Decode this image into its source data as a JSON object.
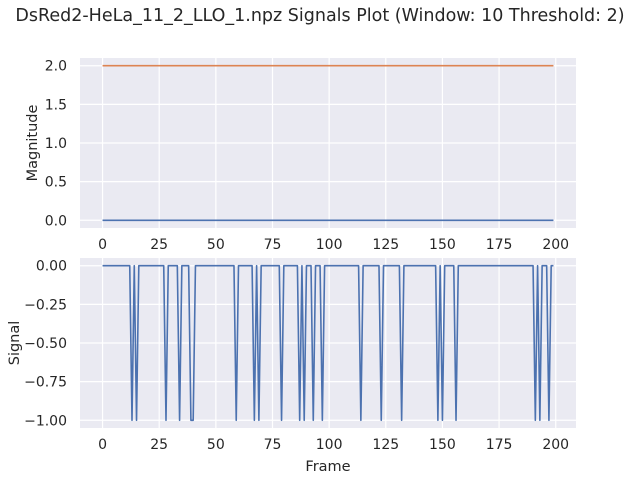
{
  "title": "DsRed2-HeLa_11_2_LLO_1.npz Signals Plot (Window: 10 Threshold: 2)",
  "colors": {
    "background": "#eaeaf2",
    "grid": "#ffffff",
    "series_blue": "#4c72b0",
    "series_orange": "#dd8452",
    "text": "#262626"
  },
  "chart_data": [
    {
      "type": "line",
      "title": "",
      "xlabel": "",
      "ylabel": "Magnitude",
      "xlim": [
        -9.95,
        208.95
      ],
      "ylim": [
        -0.1,
        2.1
      ],
      "xticks": [
        0,
        25,
        50,
        75,
        100,
        125,
        150,
        175,
        200
      ],
      "yticks": [
        0.0,
        0.5,
        1.0,
        1.5,
        2.0
      ],
      "ytick_labels": [
        "0.0",
        "0.5",
        "1.0",
        "1.5",
        "2.0"
      ],
      "grid": true,
      "series": [
        {
          "color": "#4c72b0",
          "x": [
            0,
            199
          ],
          "y": [
            0,
            0
          ]
        },
        {
          "color": "#dd8452",
          "x": [
            0,
            199
          ],
          "y": [
            2,
            2
          ]
        }
      ]
    },
    {
      "type": "line",
      "title": "",
      "xlabel": "Frame",
      "ylabel": "Signal",
      "xlim": [
        -9.95,
        208.95
      ],
      "ylim": [
        -1.05,
        0.05
      ],
      "xticks": [
        0,
        25,
        50,
        75,
        100,
        125,
        150,
        175,
        200
      ],
      "yticks": [
        0.0,
        -0.25,
        -0.5,
        -0.75,
        -1.0
      ],
      "ytick_labels": [
        "0.00",
        "−0.25",
        "−0.50",
        "−0.75",
        "−1.00"
      ],
      "grid": true,
      "series": [
        {
          "color": "#4c72b0",
          "x_range": [
            0,
            199
          ],
          "baseline": 0,
          "dips_to_minus_one": [
            13,
            15,
            28,
            34,
            39,
            40,
            59,
            67,
            69,
            79,
            87,
            89,
            93,
            97,
            114,
            123,
            132,
            148,
            150,
            156,
            191,
            193,
            197
          ]
        }
      ]
    }
  ]
}
